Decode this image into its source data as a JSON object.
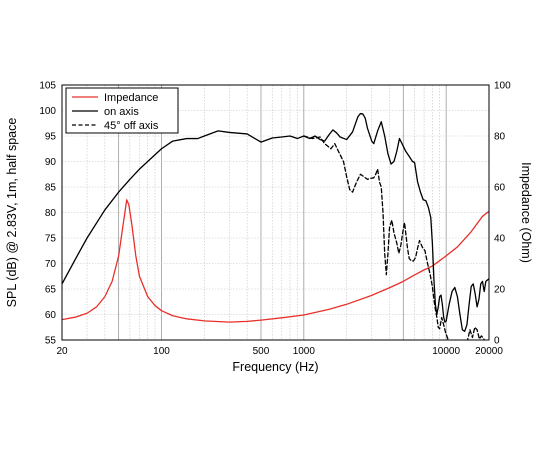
{
  "chart_data": {
    "type": "line",
    "xlabel": "Frequency (Hz)",
    "ylabel": "SPL (dB) @ 2.83V, 1m, half space",
    "y2label": "Impedance (Ohm)",
    "x_scale": "log",
    "xlim": [
      20,
      20000
    ],
    "ylim": [
      55,
      105
    ],
    "y2lim": [
      0,
      100
    ],
    "grid": true,
    "legend_position": "top-left",
    "x_tick_labels": [
      {
        "value": 20,
        "label": "20"
      },
      {
        "value": 100,
        "label": "100"
      },
      {
        "value": 500,
        "label": "500"
      },
      {
        "value": 1000,
        "label": "1000"
      },
      {
        "value": 10000,
        "label": "10000"
      },
      {
        "value": 20000,
        "label": "20000"
      }
    ],
    "y_ticks": [
      55,
      60,
      65,
      70,
      75,
      80,
      85,
      90,
      95,
      100,
      105
    ],
    "y2_ticks": [
      0,
      20,
      40,
      60,
      80,
      100
    ],
    "series": [
      {
        "name": "Impedance",
        "axis": "right",
        "color": "#e8302a",
        "dash": "solid",
        "points": [
          [
            20,
            8
          ],
          [
            25,
            9
          ],
          [
            30,
            10.5
          ],
          [
            35,
            13
          ],
          [
            40,
            17
          ],
          [
            45,
            23
          ],
          [
            50,
            33
          ],
          [
            54,
            46
          ],
          [
            57,
            55
          ],
          [
            59,
            53
          ],
          [
            62,
            45
          ],
          [
            66,
            33
          ],
          [
            70,
            25
          ],
          [
            80,
            17
          ],
          [
            90,
            13.5
          ],
          [
            100,
            11.5
          ],
          [
            120,
            9.5
          ],
          [
            150,
            8.3
          ],
          [
            200,
            7.5
          ],
          [
            300,
            7
          ],
          [
            400,
            7.3
          ],
          [
            500,
            7.8
          ],
          [
            700,
            8.7
          ],
          [
            1000,
            9.8
          ],
          [
            1500,
            12
          ],
          [
            2000,
            14
          ],
          [
            3000,
            17.5
          ],
          [
            4000,
            20.5
          ],
          [
            5000,
            23
          ],
          [
            6000,
            25.5
          ],
          [
            7000,
            27.5
          ],
          [
            8000,
            29
          ],
          [
            10000,
            33
          ],
          [
            12000,
            36.5
          ],
          [
            15000,
            42.5
          ],
          [
            18000,
            48.5
          ],
          [
            20000,
            50.5
          ]
        ]
      },
      {
        "name": "on axis",
        "axis": "left",
        "color": "#000000",
        "dash": "solid",
        "points": [
          [
            20,
            66
          ],
          [
            25,
            71
          ],
          [
            30,
            75
          ],
          [
            40,
            80.5
          ],
          [
            50,
            84
          ],
          [
            60,
            86.5
          ],
          [
            70,
            88.5
          ],
          [
            80,
            90
          ],
          [
            100,
            92.5
          ],
          [
            120,
            94
          ],
          [
            150,
            94.5
          ],
          [
            180,
            94.5
          ],
          [
            200,
            95
          ],
          [
            250,
            96
          ],
          [
            300,
            95.7
          ],
          [
            400,
            95.4
          ],
          [
            500,
            93.8
          ],
          [
            600,
            94.6
          ],
          [
            700,
            94.8
          ],
          [
            800,
            95
          ],
          [
            900,
            94.5
          ],
          [
            1000,
            95
          ],
          [
            1100,
            94.5
          ],
          [
            1200,
            95
          ],
          [
            1300,
            94.3
          ],
          [
            1400,
            94
          ],
          [
            1500,
            95.2
          ],
          [
            1600,
            96.2
          ],
          [
            1700,
            95.6
          ],
          [
            1800,
            94.8
          ],
          [
            2000,
            94.3
          ],
          [
            2200,
            95.8
          ],
          [
            2400,
            98.8
          ],
          [
            2500,
            99.4
          ],
          [
            2600,
            99.3
          ],
          [
            2700,
            98.5
          ],
          [
            2800,
            96.5
          ],
          [
            3000,
            94
          ],
          [
            3100,
            93.5
          ],
          [
            3300,
            96
          ],
          [
            3500,
            97.8
          ],
          [
            3700,
            95
          ],
          [
            3900,
            91.5
          ],
          [
            4100,
            89.5
          ],
          [
            4300,
            90
          ],
          [
            4500,
            92
          ],
          [
            4700,
            94.5
          ],
          [
            4900,
            93.5
          ],
          [
            5200,
            92
          ],
          [
            5500,
            91
          ],
          [
            5800,
            90
          ],
          [
            6000,
            89.8
          ],
          [
            6300,
            86
          ],
          [
            6600,
            84
          ],
          [
            6900,
            82.5
          ],
          [
            7200,
            82.3
          ],
          [
            7500,
            81
          ],
          [
            7800,
            79
          ],
          [
            8000,
            74
          ],
          [
            8200,
            67
          ],
          [
            8400,
            62
          ],
          [
            8600,
            60
          ],
          [
            8800,
            61.5
          ],
          [
            9000,
            63.5
          ],
          [
            9200,
            63.8
          ],
          [
            9400,
            62
          ],
          [
            9600,
            59.5
          ],
          [
            9800,
            58.5
          ],
          [
            10000,
            58.7
          ],
          [
            10500,
            62
          ],
          [
            11000,
            64.5
          ],
          [
            11500,
            65.3
          ],
          [
            12000,
            63.5
          ],
          [
            12500,
            60
          ],
          [
            13000,
            57
          ],
          [
            13500,
            56.7
          ],
          [
            14000,
            58
          ],
          [
            14500,
            62
          ],
          [
            15000,
            65.5
          ],
          [
            15500,
            66
          ],
          [
            16000,
            64
          ],
          [
            16500,
            61.5
          ],
          [
            17000,
            63
          ],
          [
            17500,
            66
          ],
          [
            18000,
            66.5
          ],
          [
            18500,
            64.5
          ],
          [
            19000,
            66.5
          ],
          [
            20000,
            67
          ]
        ]
      },
      {
        "name": "45° off axis",
        "axis": "left",
        "color": "#000000",
        "dash": "dashed",
        "points": [
          [
            1000,
            95
          ],
          [
            1150,
            94.5
          ],
          [
            1300,
            94.8
          ],
          [
            1400,
            93.5
          ],
          [
            1550,
            92.5
          ],
          [
            1650,
            93.5
          ],
          [
            1750,
            92
          ],
          [
            1900,
            90
          ],
          [
            2000,
            87
          ],
          [
            2100,
            84.5
          ],
          [
            2200,
            84
          ],
          [
            2350,
            86
          ],
          [
            2500,
            87.5
          ],
          [
            2650,
            87
          ],
          [
            2800,
            86.5
          ],
          [
            2950,
            86.7
          ],
          [
            3100,
            86.8
          ],
          [
            3200,
            87.5
          ],
          [
            3300,
            88.5
          ],
          [
            3400,
            86
          ],
          [
            3500,
            85
          ],
          [
            3600,
            80
          ],
          [
            3700,
            72
          ],
          [
            3800,
            67.8
          ],
          [
            3900,
            72
          ],
          [
            4000,
            77
          ],
          [
            4150,
            78.5
          ],
          [
            4300,
            76
          ],
          [
            4500,
            74
          ],
          [
            4650,
            72
          ],
          [
            4800,
            73.5
          ],
          [
            4950,
            76
          ],
          [
            5100,
            78
          ],
          [
            5200,
            76
          ],
          [
            5350,
            73
          ],
          [
            5500,
            71
          ],
          [
            5700,
            70.5
          ],
          [
            5900,
            70.5
          ],
          [
            6100,
            71.2
          ],
          [
            6300,
            73
          ],
          [
            6500,
            74.5
          ],
          [
            6800,
            73.2
          ],
          [
            7100,
            72.5
          ],
          [
            7400,
            70
          ],
          [
            7700,
            68
          ],
          [
            8000,
            65.5
          ],
          [
            8200,
            63
          ],
          [
            8400,
            61
          ],
          [
            8600,
            59.5
          ],
          [
            8800,
            57.5
          ],
          [
            9000,
            57.2
          ],
          [
            9300,
            59.4
          ],
          [
            9600,
            58
          ],
          [
            9900,
            56.5
          ],
          [
            10200,
            55.5
          ],
          [
            10500,
            54.5
          ],
          [
            14000,
            54.5
          ],
          [
            14700,
            57
          ],
          [
            15300,
            55.5
          ],
          [
            15900,
            57.5
          ],
          [
            16500,
            57
          ],
          [
            17100,
            55.2
          ],
          [
            17700,
            55.8
          ],
          [
            18300,
            55.3
          ],
          [
            19000,
            54.5
          ],
          [
            20000,
            54.5
          ]
        ]
      }
    ]
  }
}
